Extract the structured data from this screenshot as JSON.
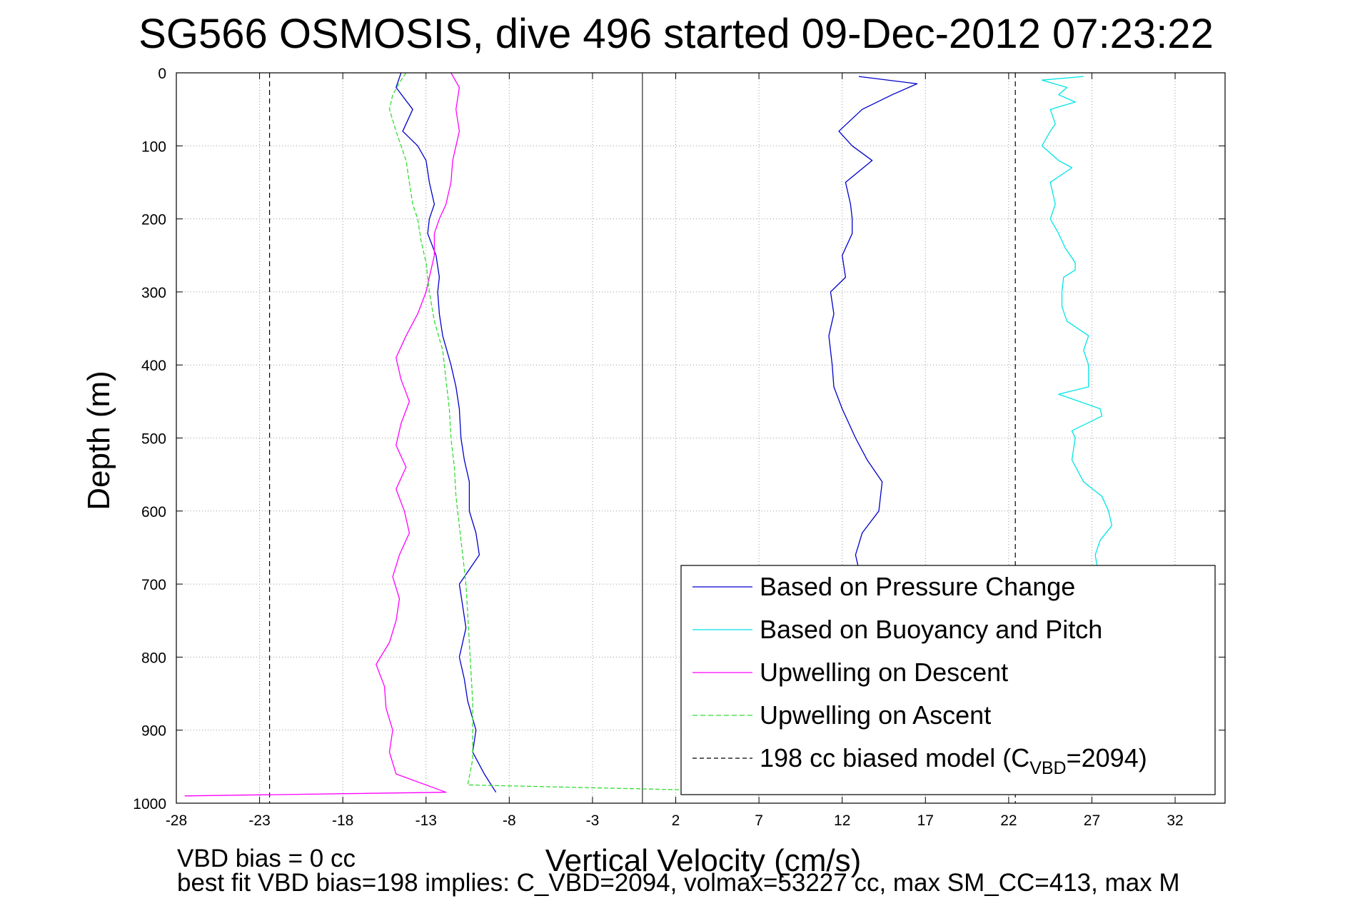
{
  "chart_data": {
    "type": "line",
    "title": "SG566 OSMOSIS, dive 496 started 09-Dec-2012 07:23:22",
    "xlabel": "Vertical Velocity (cm/s)",
    "ylabel": "Depth (m)",
    "xlim": [
      -28,
      35
    ],
    "ylim": [
      0,
      1000
    ],
    "y_reversed": true,
    "grid": true,
    "xticks": [
      "-28",
      "-23",
      "-18",
      "-13",
      "-8",
      "-3",
      "2",
      "7",
      "12",
      "17",
      "22",
      "27",
      "32"
    ],
    "yticks": [
      "0",
      "100",
      "200",
      "300",
      "400",
      "500",
      "600",
      "700",
      "800",
      "900",
      "1000"
    ],
    "legend_position": "bottom-right",
    "legend": {
      "pressure": "Based on Pressure Change",
      "buoyancy": "Based on Buoyancy and Pitch",
      "descent": "Upwelling on Descent",
      "ascent": "Upwelling on Ascent",
      "model_prefix": "198 cc biased model (C",
      "model_sub": "VBD",
      "model_suffix": "=2094)"
    },
    "zero_line_x": 0,
    "series": [
      {
        "key": "pressure",
        "color": "#0000cc",
        "style": "solid",
        "descent": {
          "depth": [
            0,
            20,
            50,
            80,
            100,
            120,
            150,
            180,
            200,
            220,
            250,
            280,
            300,
            330,
            360,
            400,
            430,
            460,
            500,
            530,
            560,
            600,
            630,
            660,
            700,
            730,
            760,
            800,
            830,
            860,
            900,
            930,
            960,
            985
          ],
          "v": [
            -14.5,
            -14.8,
            -13.8,
            -14.4,
            -13.5,
            -13.0,
            -12.8,
            -12.5,
            -12.8,
            -12.9,
            -12.4,
            -12.2,
            -12.3,
            -12.2,
            -12.0,
            -11.5,
            -11.2,
            -11.0,
            -10.9,
            -10.7,
            -10.4,
            -10.4,
            -10.0,
            -9.8,
            -11.0,
            -10.8,
            -10.6,
            -11.0,
            -10.7,
            -10.5,
            -10.0,
            -10.2,
            -9.5,
            -8.8
          ]
        },
        "ascent": {
          "depth": [
            985,
            960,
            930,
            900,
            860,
            830,
            800,
            760,
            730,
            700,
            660,
            630,
            600,
            560,
            530,
            500,
            460,
            430,
            400,
            360,
            330,
            300,
            280,
            250,
            220,
            200,
            180,
            150,
            120,
            100,
            80,
            50,
            30,
            15,
            5
          ],
          "v": [
            14.0,
            14.5,
            14.6,
            14.4,
            14.2,
            14.0,
            13.8,
            13.6,
            13.4,
            13.2,
            12.8,
            13.2,
            14.2,
            14.4,
            13.5,
            12.8,
            12.0,
            11.5,
            11.4,
            11.2,
            11.5,
            11.3,
            12.2,
            12.0,
            12.6,
            12.6,
            12.5,
            12.2,
            13.8,
            12.6,
            11.8,
            13.2,
            15.0,
            16.5,
            13.0
          ]
        }
      },
      {
        "key": "buoyancy",
        "color": "#00e5e5",
        "style": "solid",
        "ascent": {
          "depth": [
            985,
            960,
            930,
            900,
            860,
            830,
            800,
            760,
            730,
            700,
            660,
            640,
            620,
            600,
            580,
            560,
            530,
            500,
            490,
            470,
            460,
            440,
            430,
            400,
            380,
            360,
            340,
            320,
            300,
            280,
            270,
            260,
            240,
            220,
            200,
            180,
            150,
            130,
            120,
            100,
            80,
            70,
            50,
            40,
            30,
            20,
            10,
            5
          ],
          "v": [
            28.0,
            28.0,
            27.8,
            27.6,
            27.4,
            27.2,
            27.0,
            27.0,
            27.2,
            27.5,
            27.2,
            27.5,
            28.2,
            28.0,
            27.6,
            26.5,
            25.8,
            26.0,
            25.8,
            27.6,
            27.5,
            25.0,
            26.8,
            26.8,
            26.5,
            26.8,
            25.5,
            25.2,
            25.2,
            25.3,
            26.0,
            26.0,
            25.4,
            25.0,
            24.5,
            24.8,
            24.5,
            25.8,
            25.0,
            24.0,
            24.5,
            24.8,
            24.5,
            26.0,
            25.0,
            25.5,
            24.0,
            26.5
          ]
        }
      },
      {
        "key": "descent",
        "color": "#ff00ff",
        "style": "solid",
        "depth": [
          0,
          20,
          50,
          80,
          100,
          120,
          150,
          180,
          200,
          220,
          250,
          280,
          300,
          330,
          360,
          390,
          420,
          450,
          480,
          510,
          540,
          570,
          600,
          630,
          660,
          690,
          720,
          750,
          780,
          810,
          840,
          870,
          900,
          930,
          960,
          985,
          990
        ],
        "v": [
          -11.5,
          -11.0,
          -11.2,
          -11.0,
          -11.2,
          -11.4,
          -11.5,
          -11.8,
          -12.2,
          -12.5,
          -12.5,
          -12.8,
          -13.0,
          -13.5,
          -14.2,
          -14.8,
          -14.5,
          -14.0,
          -14.5,
          -14.8,
          -14.2,
          -14.8,
          -14.3,
          -14.0,
          -14.6,
          -15.0,
          -14.6,
          -14.8,
          -15.2,
          -16.0,
          -15.5,
          -15.4,
          -15.0,
          -15.2,
          -14.8,
          -11.8,
          -27.5
        ]
      },
      {
        "key": "ascent",
        "color": "#33dd33",
        "style": "dashed",
        "depth": [
          0,
          10,
          30,
          50,
          80,
          100,
          120,
          150,
          180,
          200,
          230,
          260,
          300,
          340,
          380,
          420,
          460,
          500,
          540,
          580,
          620,
          660,
          700,
          740,
          780,
          820,
          860,
          900,
          940,
          975,
          988
        ],
        "v": [
          -14.2,
          -14.5,
          -15.0,
          -15.2,
          -14.8,
          -14.5,
          -14.2,
          -14.0,
          -13.8,
          -13.5,
          -13.3,
          -13.0,
          -12.8,
          -12.5,
          -12.0,
          -11.8,
          -11.6,
          -11.5,
          -11.3,
          -11.2,
          -11.0,
          -10.8,
          -10.6,
          -10.5,
          -10.4,
          -10.3,
          -10.2,
          -10.2,
          -10.2,
          -10.5,
          14.5
        ]
      }
    ],
    "model_lines": {
      "color": "#000000",
      "style": "dashed",
      "x_values": [
        -22.4,
        22.4
      ]
    },
    "annotations": {
      "bias_note": "VBD bias = 0 cc",
      "fit_note": "best fit VBD bias=198 implies: C_VBD=2094, volmax=53227 cc, max SM_CC=413, max M"
    }
  }
}
